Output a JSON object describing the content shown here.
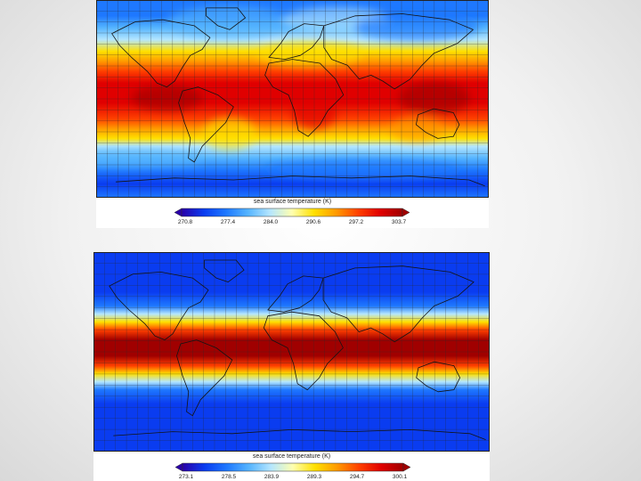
{
  "colors": {
    "ramp": [
      "#2a00a8",
      "#0a3cf0",
      "#1e78ff",
      "#55b4ff",
      "#b4e6ff",
      "#ffffb0",
      "#ffe000",
      "#ff9a00",
      "#ff4000",
      "#e00000",
      "#a00000"
    ],
    "grid": "#2a2a2a",
    "coast": "#141414"
  },
  "maps": [
    {
      "kind": "observed",
      "colorbar_label": "sea surface temperature (K)",
      "ticks": [
        "270.8",
        "277.4",
        "284.0",
        "290.6",
        "297.2",
        "303.7"
      ],
      "range_k": [
        270.8,
        303.7
      ]
    },
    {
      "kind": "idealized",
      "colorbar_label": "sea surface temperature (K)",
      "ticks": [
        "273.1",
        "278.5",
        "283.9",
        "289.3",
        "294.7",
        "300.1"
      ],
      "range_k": [
        273.1,
        300.1
      ]
    }
  ]
}
